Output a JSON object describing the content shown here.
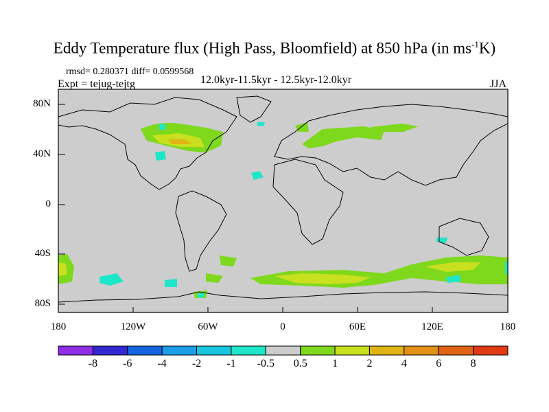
{
  "title": {
    "main": "Eddy Temperature flux (High Pass, Bloomfield) at 850 hPa (in ms",
    "sup": "-1",
    "unit_end": "K)"
  },
  "stats": "rmsd= 0.280371  diff= 0.0599568",
  "experiment": "Expt = tejug-tejtg",
  "period": "12.0kyr-11.5kyr - 12.5kyr-12.0kyr",
  "season": "JJA",
  "y_ticks": [
    "80N",
    "40N",
    "0",
    "40S",
    "80S"
  ],
  "x_ticks": [
    "180",
    "120W",
    "60W",
    "0",
    "60E",
    "120E",
    "180"
  ],
  "colorbar": {
    "labels": [
      "-8",
      "-6",
      "-4",
      "-2",
      "-1",
      "-0.5",
      "0.5",
      "1",
      "2",
      "4",
      "6",
      "8"
    ],
    "colors": [
      "#8f2ee6",
      "#3228d2",
      "#1565e0",
      "#1a9ee8",
      "#19c6e0",
      "#1ee6c8",
      "#cdcdcd",
      "#7ed81c",
      "#c8e01e",
      "#e0b414",
      "#e29016",
      "#e06414",
      "#e03a14"
    ]
  },
  "colors": {
    "land_background": "#cdcdcd",
    "positive_low": "#7ed81c",
    "positive_mid": "#c8e01e",
    "positive_high": "#e0b414",
    "negative_low": "#1ee6c8"
  }
}
